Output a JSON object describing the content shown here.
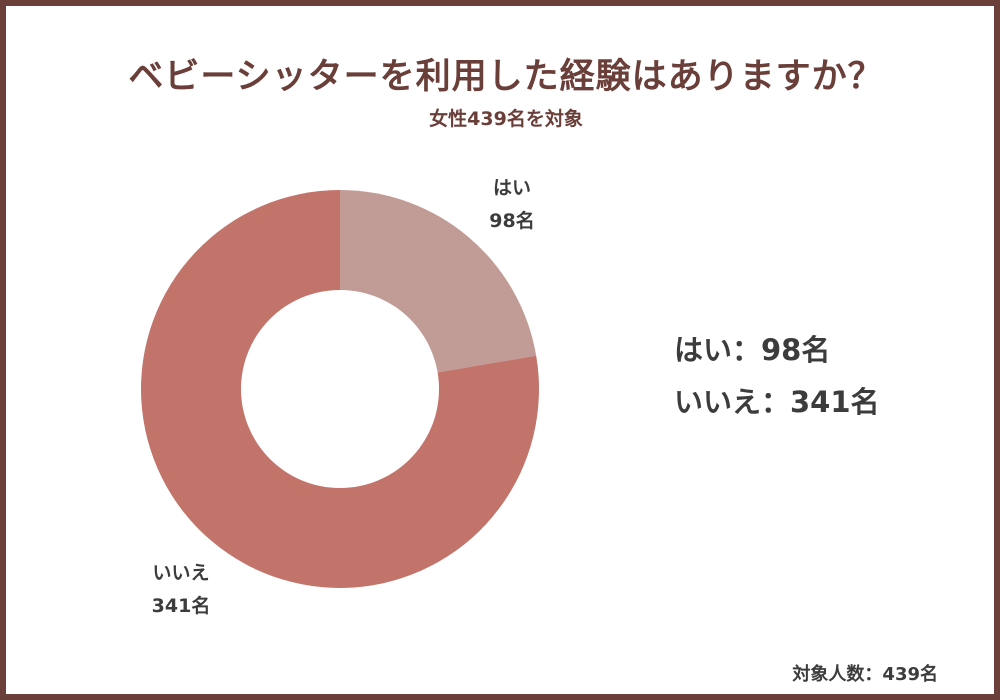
{
  "chart_data": {
    "type": "pie",
    "title": "ベビーシッターを利用した経験はありますか？",
    "subtitle": "女性439名を対象",
    "categories": [
      "はい",
      "いいえ"
    ],
    "values": [
      98,
      341
    ],
    "value_labels": [
      "98名",
      "341名"
    ],
    "colors": [
      "#c19b96",
      "#c2746b"
    ],
    "legend_lines": [
      "はい：98名",
      "いいえ：341名"
    ],
    "footnote": "対象人数：439名",
    "donut": true
  }
}
